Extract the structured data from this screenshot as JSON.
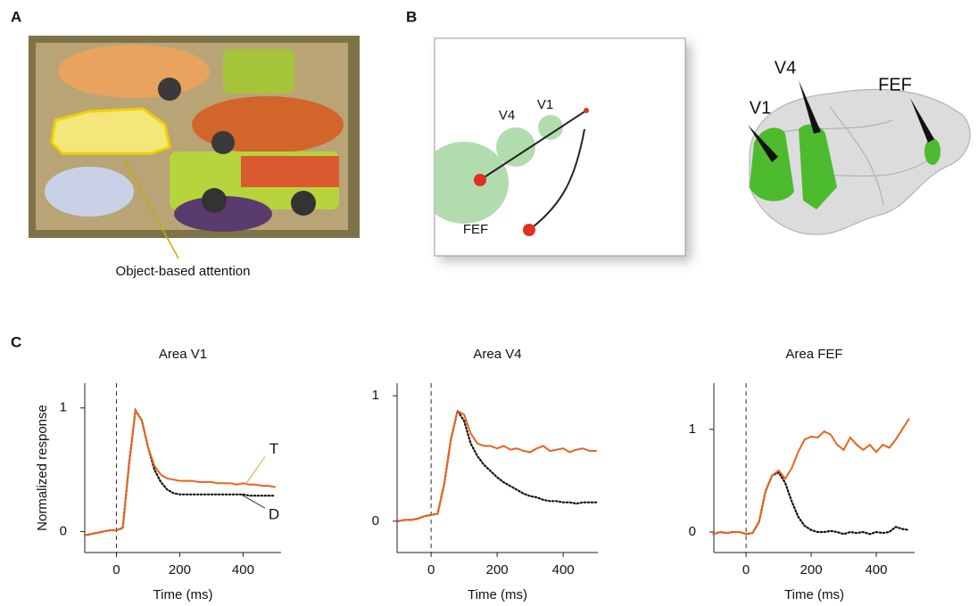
{
  "panels": {
    "A": {
      "label": "A",
      "caption": "Object-based attention"
    },
    "B": {
      "label": "B",
      "diagram_labels": [
        "V4",
        "V1",
        "FEF"
      ],
      "brain_labels": [
        "V1",
        "V4",
        "FEF"
      ]
    },
    "C": {
      "label": "C"
    }
  },
  "chart_data": [
    {
      "type": "line",
      "title": "Area V1",
      "x_label": "Time (ms)",
      "y_label": "Normalized response",
      "annotations": [
        "T",
        "D"
      ],
      "vline": 0,
      "x": [
        -100,
        -80,
        -60,
        -40,
        -20,
        0,
        20,
        40,
        60,
        80,
        100,
        120,
        140,
        160,
        180,
        200,
        220,
        240,
        260,
        280,
        300,
        320,
        340,
        360,
        380,
        400,
        420,
        440,
        460,
        480,
        500
      ],
      "series": [
        {
          "name": "T",
          "color": "#e8641e",
          "dash": "solid",
          "values": [
            -0.03,
            -0.02,
            -0.01,
            0,
            0.01,
            0.01,
            0.03,
            0.55,
            0.98,
            0.9,
            0.68,
            0.53,
            0.46,
            0.43,
            0.42,
            0.41,
            0.41,
            0.41,
            0.4,
            0.4,
            0.4,
            0.39,
            0.39,
            0.39,
            0.38,
            0.39,
            0.38,
            0.38,
            0.37,
            0.37,
            0.36
          ]
        },
        {
          "name": "D",
          "color": "#111111",
          "dash": "dotted",
          "values": [
            -0.03,
            -0.02,
            -0.01,
            0,
            0.01,
            0.01,
            0.03,
            0.55,
            0.98,
            0.9,
            0.68,
            0.5,
            0.4,
            0.34,
            0.31,
            0.3,
            0.3,
            0.3,
            0.3,
            0.3,
            0.3,
            0.3,
            0.3,
            0.3,
            0.3,
            0.3,
            0.29,
            0.29,
            0.29,
            0.29,
            0.29
          ]
        }
      ],
      "xlim": [
        -100,
        520
      ],
      "ylim": [
        -0.17,
        1.2
      ],
      "xticks": [
        0,
        200,
        400
      ],
      "yticks": [
        0,
        1
      ]
    },
    {
      "type": "line",
      "title": "Area V4",
      "x_label": "Time (ms)",
      "vline": 0,
      "x": [
        -100,
        -80,
        -60,
        -40,
        -20,
        0,
        20,
        40,
        60,
        80,
        100,
        120,
        140,
        160,
        180,
        200,
        220,
        240,
        260,
        280,
        300,
        320,
        340,
        360,
        380,
        400,
        420,
        440,
        460,
        480,
        500
      ],
      "series": [
        {
          "name": "T",
          "color": "#e8641e",
          "dash": "solid",
          "values": [
            0,
            0.01,
            0.01,
            0.02,
            0.04,
            0.05,
            0.06,
            0.3,
            0.65,
            0.88,
            0.85,
            0.7,
            0.62,
            0.6,
            0.6,
            0.58,
            0.6,
            0.57,
            0.58,
            0.56,
            0.55,
            0.58,
            0.6,
            0.56,
            0.57,
            0.58,
            0.55,
            0.57,
            0.58,
            0.56,
            0.56
          ]
        },
        {
          "name": "D",
          "color": "#111111",
          "dash": "dotted",
          "values": [
            0,
            0.01,
            0.01,
            0.02,
            0.04,
            0.05,
            0.06,
            0.3,
            0.65,
            0.88,
            0.8,
            0.62,
            0.52,
            0.45,
            0.4,
            0.35,
            0.31,
            0.28,
            0.25,
            0.22,
            0.2,
            0.19,
            0.17,
            0.16,
            0.16,
            0.15,
            0.15,
            0.14,
            0.15,
            0.15,
            0.15
          ]
        }
      ],
      "xlim": [
        -103,
        505
      ],
      "ylim": [
        -0.25,
        1.1
      ],
      "xticks": [
        0,
        200,
        400
      ],
      "yticks": [
        0,
        1
      ]
    },
    {
      "type": "line",
      "title": "Area FEF",
      "x_label": "Time (ms)",
      "vline": 0,
      "x": [
        -100,
        -80,
        -60,
        -40,
        -20,
        0,
        20,
        40,
        60,
        80,
        100,
        120,
        140,
        160,
        180,
        200,
        220,
        240,
        260,
        280,
        300,
        320,
        340,
        360,
        380,
        400,
        420,
        440,
        460,
        480,
        500
      ],
      "series": [
        {
          "name": "T",
          "color": "#e8641e",
          "dash": "solid",
          "values": [
            -0.02,
            0,
            -0.01,
            0,
            0,
            -0.02,
            -0.01,
            0.1,
            0.4,
            0.55,
            0.6,
            0.52,
            0.62,
            0.78,
            0.9,
            0.93,
            0.92,
            0.98,
            0.95,
            0.85,
            0.8,
            0.92,
            0.85,
            0.8,
            0.85,
            0.78,
            0.85,
            0.82,
            0.9,
            1.0,
            1.1
          ]
        },
        {
          "name": "D",
          "color": "#111111",
          "dash": "dotted",
          "values": [
            -0.02,
            0,
            -0.01,
            0,
            0,
            -0.02,
            -0.01,
            0.1,
            0.4,
            0.55,
            0.58,
            0.48,
            0.3,
            0.15,
            0.06,
            0.02,
            0,
            0,
            0.01,
            0,
            -0.02,
            0,
            -0.01,
            0,
            -0.02,
            0,
            -0.01,
            0,
            0.05,
            0.03,
            0.02
          ]
        }
      ],
      "xlim": [
        -99,
        518
      ],
      "ylim": [
        -0.2,
        1.45
      ],
      "xticks": [
        0,
        200,
        400
      ],
      "yticks": [
        0,
        1
      ]
    }
  ]
}
